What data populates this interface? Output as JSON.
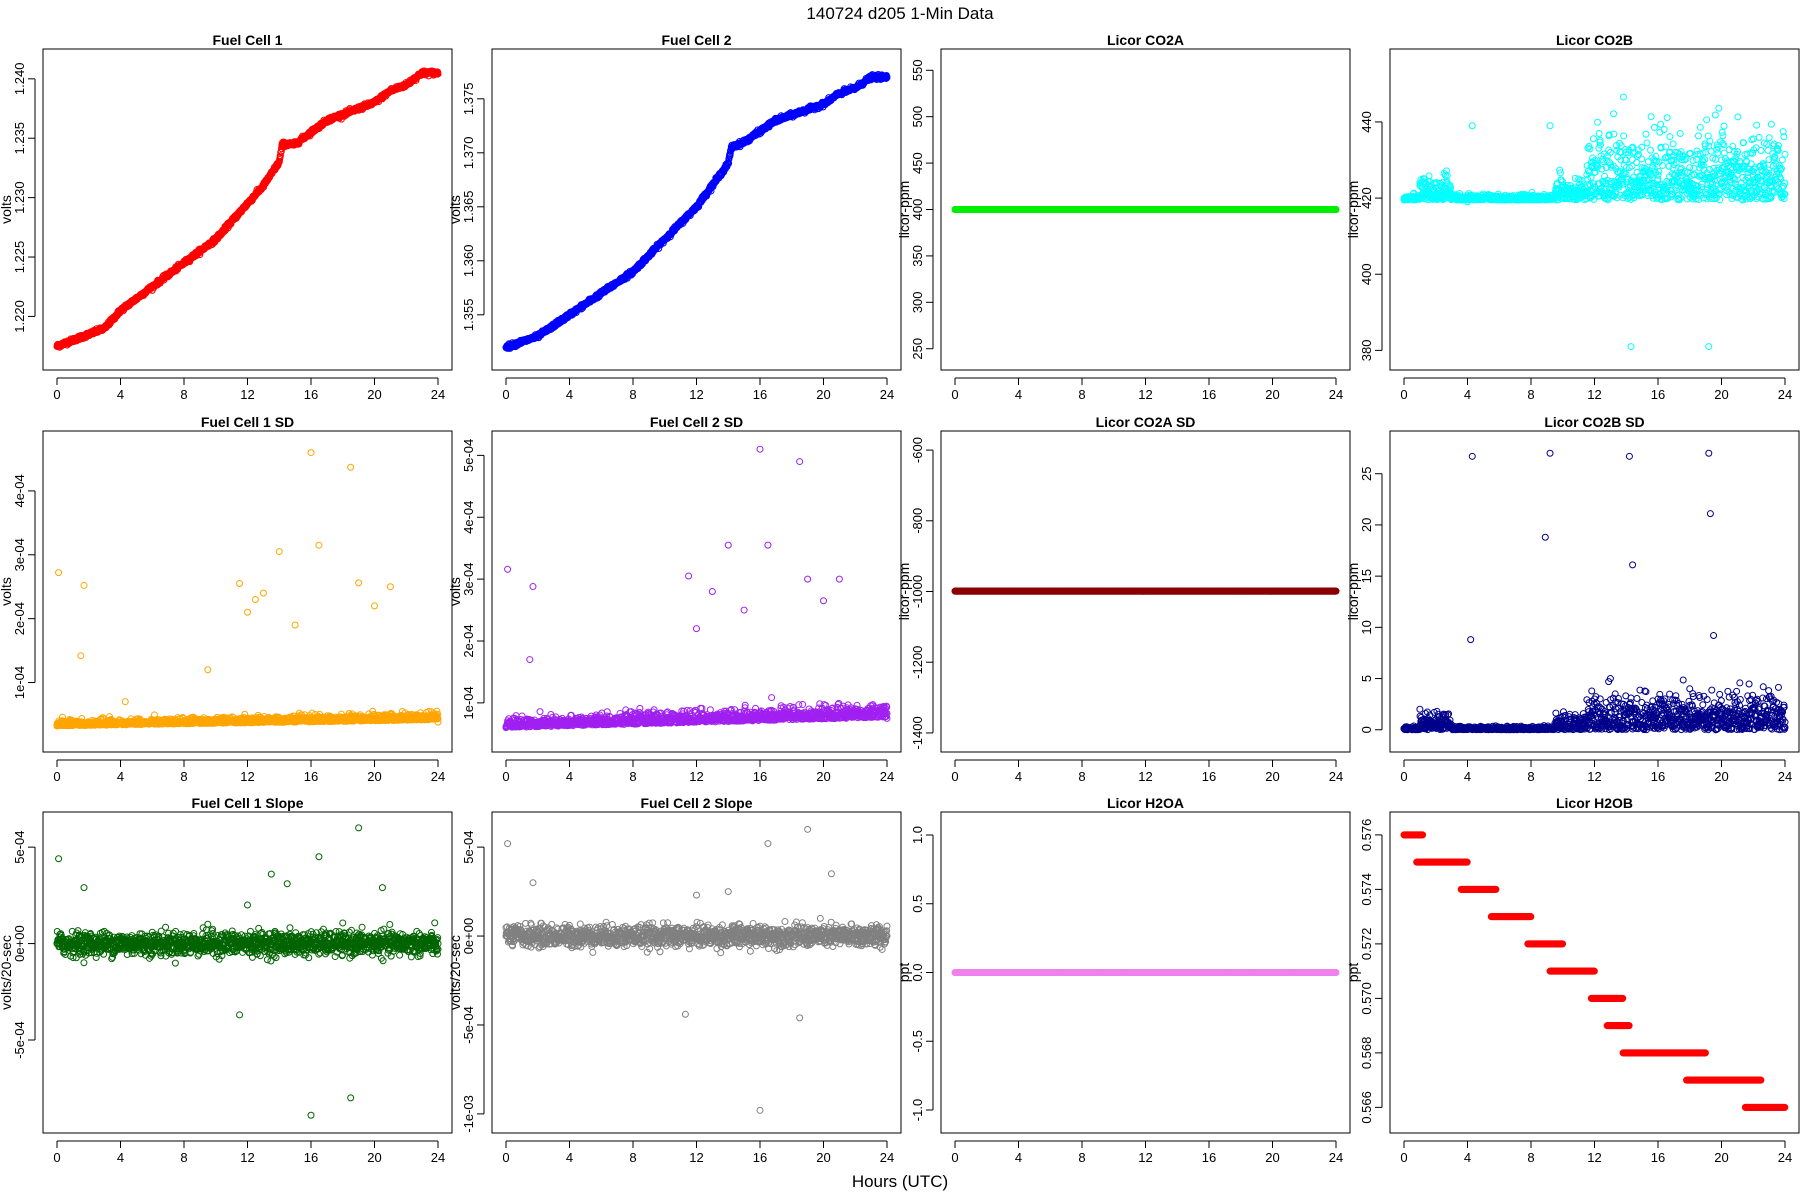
{
  "figure": {
    "title": "140724   d205   1-Min Data",
    "xlabel": "Hours (UTC)"
  },
  "chart_data": [
    {
      "name": "Fuel Cell 1",
      "type": "scatter",
      "color": "#ff0000",
      "ylabel": "volts",
      "xlim": [
        0,
        24
      ],
      "ylim": [
        1.2165,
        1.2415
      ],
      "yticks": [
        1.22,
        1.225,
        1.23,
        1.235,
        1.24
      ],
      "ytick_labels": [
        "1.220",
        "1.225",
        "1.230",
        "1.235",
        "1.240"
      ],
      "x": [
        0,
        1,
        2,
        3,
        4,
        5,
        6,
        7,
        8,
        9,
        10,
        11,
        12,
        13,
        14,
        14.2,
        15,
        16,
        17,
        18,
        19,
        20,
        21,
        22,
        23,
        24
      ],
      "y": [
        1.2175,
        1.218,
        1.2185,
        1.219,
        1.2205,
        1.2215,
        1.2225,
        1.2235,
        1.2245,
        1.2255,
        1.2265,
        1.228,
        1.2295,
        1.231,
        1.233,
        1.2345,
        1.2345,
        1.2355,
        1.2365,
        1.237,
        1.2375,
        1.238,
        1.239,
        1.2395,
        1.2405,
        1.2405
      ]
    },
    {
      "name": "Fuel Cell 2",
      "type": "scatter",
      "color": "#0000ff",
      "ylabel": "volts",
      "xlim": [
        0,
        24
      ],
      "ylim": [
        1.351,
        1.3785
      ],
      "yticks": [
        1.355,
        1.36,
        1.365,
        1.37,
        1.375
      ],
      "ytick_labels": [
        "1.355",
        "1.360",
        "1.365",
        "1.370",
        "1.375"
      ],
      "x": [
        0,
        1,
        2,
        3,
        4,
        5,
        6,
        7,
        8,
        9,
        10,
        11,
        12,
        13,
        14,
        14.2,
        15,
        16,
        17,
        18,
        19,
        20,
        21,
        22,
        23,
        24
      ],
      "y": [
        1.352,
        1.3525,
        1.353,
        1.354,
        1.355,
        1.356,
        1.357,
        1.358,
        1.359,
        1.3605,
        1.362,
        1.3635,
        1.365,
        1.367,
        1.369,
        1.3705,
        1.371,
        1.372,
        1.373,
        1.3735,
        1.374,
        1.3745,
        1.3755,
        1.376,
        1.377,
        1.377
      ]
    },
    {
      "name": "Licor CO2A",
      "type": "scatter",
      "color": "#00ee00",
      "ylabel": "licor-ppm",
      "xlim": [
        0,
        24
      ],
      "ylim": [
        240,
        560
      ],
      "yticks": [
        250,
        300,
        350,
        400,
        450,
        500,
        550
      ],
      "ytick_labels": [
        "250",
        "300",
        "350",
        "400",
        "450",
        "500",
        "550"
      ],
      "x": [
        0,
        24
      ],
      "y": [
        400,
        400
      ]
    },
    {
      "name": "Licor CO2B",
      "type": "scatter",
      "color": "#00ffff",
      "ylabel": "licor-ppm",
      "xlim": [
        0,
        24
      ],
      "ylim": [
        378,
        456
      ],
      "yticks": [
        380,
        400,
        420,
        440
      ],
      "ytick_labels": [
        "380",
        "400",
        "420",
        "440"
      ],
      "x": [
        0,
        1,
        2,
        3,
        4,
        4.3,
        5,
        6,
        7,
        8,
        9,
        9.2,
        10,
        11,
        12,
        13,
        14,
        14.3,
        15,
        16,
        17,
        18,
        19,
        19.2,
        20,
        21,
        22,
        23,
        24
      ],
      "y": [
        420,
        424,
        421,
        420,
        419,
        439,
        420,
        420,
        420,
        420,
        420,
        439,
        421,
        425,
        428,
        432,
        430,
        381,
        428,
        426,
        430,
        428,
        432,
        381,
        430,
        428,
        426,
        424,
        421
      ]
    },
    {
      "name": "Fuel Cell 1 SD",
      "type": "scatter",
      "color": "#ffa500",
      "ylabel": "volts",
      "xlim": [
        0,
        24
      ],
      "ylim": [
        1e-05,
        0.000475
      ],
      "yticks": [
        0.0001,
        0.0002,
        0.0003,
        0.0004
      ],
      "ytick_labels": [
        "1e-04",
        "2e-04",
        "3e-04",
        "4e-04"
      ],
      "x": [
        0,
        0.1,
        1.5,
        1.7,
        4.3,
        9.5,
        11.5,
        12,
        12.5,
        13,
        14,
        15,
        16,
        16.5,
        18.5,
        19,
        20,
        21,
        24
      ],
      "y": [
        3.2e-05,
        0.000272,
        0.000142,
        0.000252,
        7e-05,
        0.00012,
        0.000255,
        0.00021,
        0.00023,
        0.00024,
        0.000305,
        0.00019,
        0.00046,
        0.000315,
        0.000437,
        0.000256,
        0.00022,
        0.00025,
        3.8e-05
      ]
    },
    {
      "name": "Fuel Cell 2 SD",
      "type": "scatter",
      "color": "#a020f0",
      "ylabel": "volts",
      "xlim": [
        0,
        24
      ],
      "ylim": [
        4e-05,
        0.00052
      ],
      "yticks": [
        0.0001,
        0.0002,
        0.0003,
        0.0004,
        0.0005
      ],
      "ytick_labels": [
        "1e-04",
        "2e-04",
        "3e-04",
        "4e-04",
        "5e-04"
      ],
      "x": [
        0,
        0.1,
        1.5,
        1.7,
        11.5,
        12,
        13,
        14,
        15,
        16,
        16.5,
        18.5,
        19,
        20,
        21,
        24
      ],
      "y": [
        6e-05,
        0.000316,
        0.00017,
        0.000288,
        0.000305,
        0.00022,
        0.00028,
        0.000355,
        0.00025,
        0.00051,
        0.000355,
        0.00049,
        0.0003,
        0.000265,
        0.0003,
        7.5e-05
      ]
    },
    {
      "name": "Licor CO2A SD",
      "type": "scatter",
      "color": "#8b0000",
      "ylabel": "licor-ppm",
      "xlim": [
        0,
        24
      ],
      "ylim": [
        -1420,
        -580
      ],
      "yticks": [
        -1400,
        -1200,
        -1000,
        -800,
        -600
      ],
      "ytick_labels": [
        "-1400",
        "-1200",
        "-1000",
        "-800",
        "-600"
      ],
      "x": [
        0,
        24
      ],
      "y": [
        -999,
        -999
      ]
    },
    {
      "name": "Licor CO2B SD",
      "type": "scatter",
      "color": "#00008b",
      "ylabel": "licor-ppm",
      "xlim": [
        0,
        24
      ],
      "ylim": [
        -1,
        28
      ],
      "yticks": [
        0,
        5,
        10,
        15,
        20,
        25
      ],
      "ytick_labels": [
        "0",
        "5",
        "10",
        "15",
        "20",
        "25"
      ],
      "x": [
        0,
        1,
        2,
        4.2,
        4.3,
        8.9,
        9.2,
        12,
        13,
        14.2,
        14.4,
        16,
        18,
        19.2,
        19.3,
        19.5,
        21,
        24
      ],
      "y": [
        0.1,
        2,
        1,
        8.8,
        26.7,
        18.8,
        27,
        3,
        5,
        26.7,
        16.1,
        3,
        4,
        27,
        21.1,
        9.2,
        2,
        0.2
      ]
    },
    {
      "name": "Fuel Cell 1 Slope",
      "type": "scatter",
      "color": "#006400",
      "ylabel": "volts/20-sec",
      "xlim": [
        0,
        24
      ],
      "ylim": [
        -0.00092,
        0.00062
      ],
      "yticks": [
        -0.0005,
        0,
        0.0005
      ],
      "ytick_labels": [
        "-5e-04",
        "0e+00",
        "5e-04"
      ],
      "x": [
        0,
        0.1,
        1.7,
        9.5,
        11.5,
        12,
        13.5,
        14.5,
        16,
        16.5,
        18.5,
        19,
        20.5,
        24
      ],
      "y": [
        0,
        0.00044,
        0.00029,
        0.0001,
        -0.00037,
        0.0002,
        0.00036,
        0.00031,
        -0.00089,
        0.00045,
        -0.0008,
        0.0006,
        0.00029,
        0
      ]
    },
    {
      "name": "Fuel Cell 2 Slope",
      "type": "scatter",
      "color": "#808080",
      "ylabel": "volts/20-sec",
      "xlim": [
        0,
        24
      ],
      "ylim": [
        -0.00104,
        0.00063
      ],
      "yticks": [
        -0.001,
        -0.0005,
        0,
        0.0005
      ],
      "ytick_labels": [
        "-1e-03",
        "-5e-04",
        "0e+00",
        "5e-04"
      ],
      "x": [
        0,
        0.1,
        1.7,
        11.3,
        12,
        14,
        16,
        16.5,
        18.5,
        19,
        20.5,
        24
      ],
      "y": [
        0,
        0.00052,
        0.0003,
        -0.00044,
        0.00023,
        0.00025,
        -0.00098,
        0.00052,
        -0.00046,
        0.0006,
        0.00035,
        0
      ]
    },
    {
      "name": "Licor H2OA",
      "type": "scatter",
      "color": "#ee82ee",
      "ylabel": "ppt",
      "xlim": [
        0,
        24
      ],
      "ylim": [
        -1.08,
        1.08
      ],
      "yticks": [
        -1,
        -0.5,
        0,
        0.5,
        1
      ],
      "ytick_labels": [
        "-1.0",
        "-0.5",
        "0.0",
        "0.5",
        "1.0"
      ],
      "x": [
        0,
        24
      ],
      "y": [
        0,
        0
      ]
    },
    {
      "name": "Licor H2OB",
      "type": "scatter",
      "color": "#ff0000",
      "ylabel": "ppt",
      "xlim": [
        0,
        24
      ],
      "ylim": [
        0.5655,
        0.5764
      ],
      "yticks": [
        0.566,
        0.568,
        0.57,
        0.572,
        0.574,
        0.576
      ],
      "ytick_labels": [
        "0.566",
        "0.568",
        "0.570",
        "0.572",
        "0.574",
        "0.576"
      ],
      "steps": [
        [
          0,
          1.2,
          0.576
        ],
        [
          0.8,
          4.0,
          0.575
        ],
        [
          3.6,
          5.8,
          0.574
        ],
        [
          5.5,
          8.0,
          0.573
        ],
        [
          7.8,
          10.0,
          0.572
        ],
        [
          9.2,
          12.0,
          0.571
        ],
        [
          11.8,
          13.8,
          0.57
        ],
        [
          12.8,
          14.2,
          0.569
        ],
        [
          13.8,
          19.0,
          0.568
        ],
        [
          17.8,
          22.5,
          0.567
        ],
        [
          21.5,
          24.0,
          0.566
        ]
      ]
    }
  ]
}
